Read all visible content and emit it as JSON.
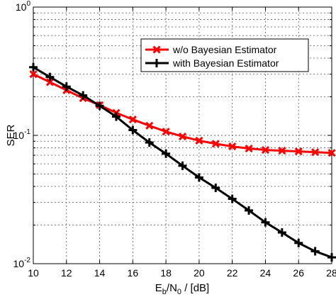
{
  "chart_data": {
    "type": "line",
    "title": "",
    "xlabel_main": "E",
    "xlabel_sub1": "b",
    "xlabel_mid": "/N",
    "xlabel_sub2": "0",
    "xlabel_tail": " / [dB]",
    "ylabel": "SER",
    "xlim": [
      10,
      28
    ],
    "ylim": [
      0.01,
      1
    ],
    "yscale": "log",
    "grid": true,
    "legend_position": "top-right",
    "x_ticks": [
      "10",
      "12",
      "14",
      "16",
      "18",
      "20",
      "22",
      "24",
      "26",
      "28"
    ],
    "y_ticks": [
      {
        "base": "10",
        "exp": "0"
      },
      {
        "base": "10",
        "exp": "-1"
      },
      {
        "base": "10",
        "exp": "-2"
      }
    ],
    "x": [
      10,
      11,
      12,
      13,
      14,
      15,
      16,
      17,
      18,
      19,
      20,
      21,
      22,
      23,
      24,
      25,
      26,
      27,
      28
    ],
    "series": [
      {
        "name": "w/o Bayesian Estimator",
        "color": "#ff0000",
        "marker": "x",
        "values": [
          0.3,
          0.26,
          0.225,
          0.195,
          0.172,
          0.15,
          0.133,
          0.119,
          0.107,
          0.098,
          0.091,
          0.086,
          0.082,
          0.079,
          0.077,
          0.076,
          0.075,
          0.074,
          0.073
        ]
      },
      {
        "name": "with Bayesian Estimator",
        "color": "#000000",
        "marker": "+",
        "values": [
          0.34,
          0.285,
          0.24,
          0.205,
          0.17,
          0.14,
          0.11,
          0.088,
          0.072,
          0.058,
          0.047,
          0.039,
          0.032,
          0.026,
          0.021,
          0.0175,
          0.0145,
          0.0125,
          0.0112
        ]
      }
    ]
  }
}
